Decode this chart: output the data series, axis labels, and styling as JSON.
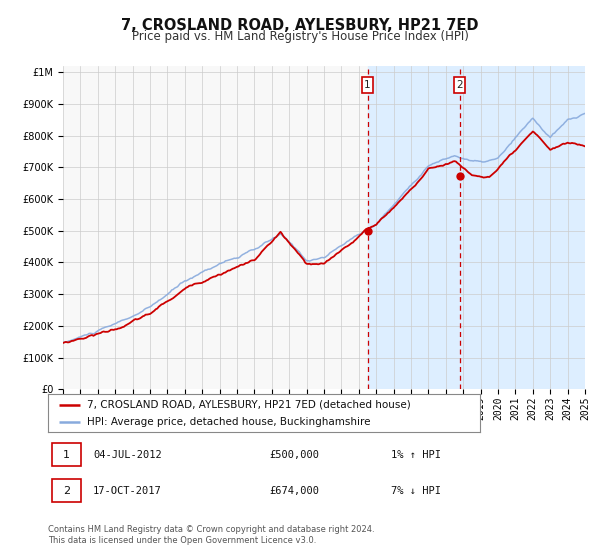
{
  "title": "7, CROSLAND ROAD, AYLESBURY, HP21 7ED",
  "subtitle": "Price paid vs. HM Land Registry's House Price Index (HPI)",
  "legend_label_red": "7, CROSLAND ROAD, AYLESBURY, HP21 7ED (detached house)",
  "legend_label_blue": "HPI: Average price, detached house, Buckinghamshire",
  "marker1_date_num": 2012.5,
  "marker1_label": "1",
  "marker1_date_str": "04-JUL-2012",
  "marker1_price": "£500,000",
  "marker1_hpi": "1% ↑ HPI",
  "marker1_value": 500000,
  "marker2_date_num": 2017.79,
  "marker2_label": "2",
  "marker2_date_str": "17-OCT-2017",
  "marker2_price": "£674,000",
  "marker2_hpi": "7% ↓ HPI",
  "marker2_value": 674000,
  "xmin": 1995,
  "xmax": 2025,
  "ymin": 0,
  "ymax": 1000000,
  "bg_color": "#ffffff",
  "plot_bg_color": "#f8f8f8",
  "shaded_region_color": "#ddeeff",
  "grid_color": "#cccccc",
  "red_line_color": "#cc0000",
  "blue_line_color": "#88aadd",
  "marker_color": "#cc0000",
  "vline_color": "#cc0000",
  "footer_text": "Contains HM Land Registry data © Crown copyright and database right 2024.\nThis data is licensed under the Open Government Licence v3.0.",
  "title_fontsize": 10.5,
  "subtitle_fontsize": 8.5,
  "tick_fontsize": 7,
  "legend_fontsize": 7.5,
  "footer_fontsize": 6
}
